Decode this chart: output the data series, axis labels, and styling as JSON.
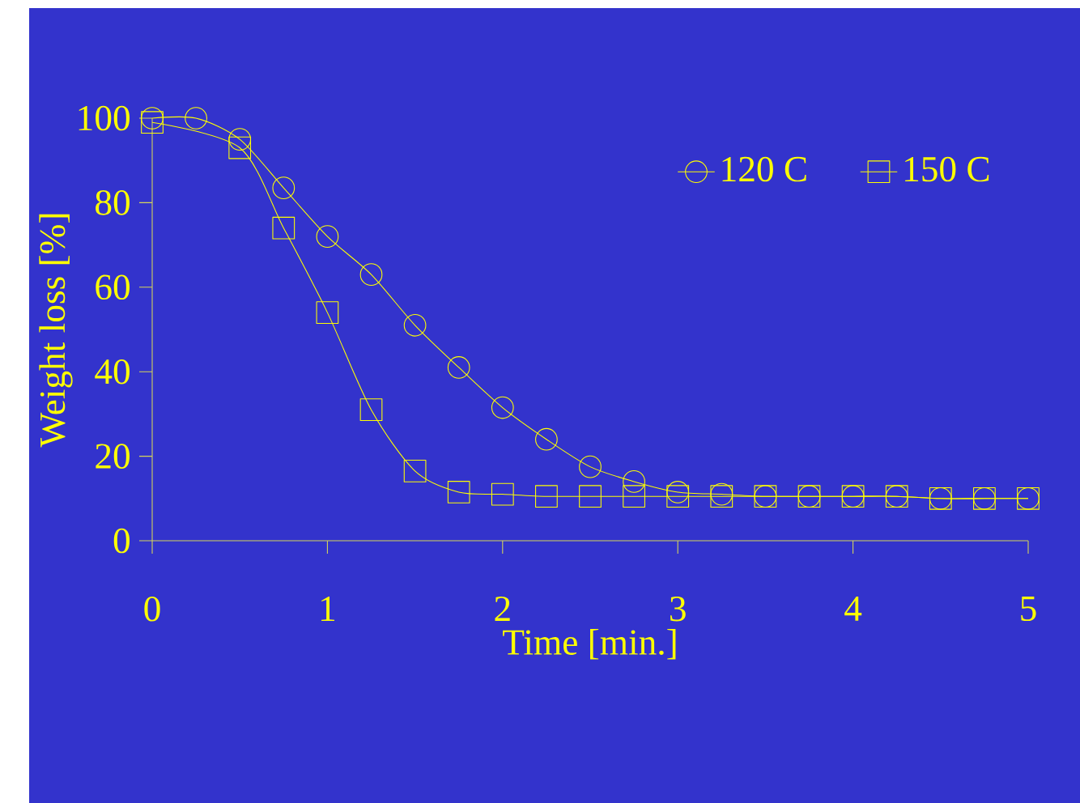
{
  "chart_data": {
    "type": "line",
    "xlabel": "Time [min.]",
    "ylabel": "Weight loss [%]",
    "xlim": [
      0,
      5
    ],
    "ylim": [
      0,
      100
    ],
    "xticks": [
      0,
      1,
      2,
      3,
      4,
      5
    ],
    "yticks": [
      0,
      20,
      40,
      60,
      80,
      100
    ],
    "grid": false,
    "legend": "top right",
    "line_style": "solid",
    "series": [
      {
        "name": "120 C",
        "color": "#ffff00",
        "marker": "circle",
        "x": [
          0,
          0.25,
          0.5,
          0.75,
          1,
          1.25,
          1.5,
          1.75,
          2,
          2.25,
          2.5,
          2.75,
          3,
          3.25,
          3.5,
          3.75,
          4,
          4.25,
          4.5,
          4.75,
          5
        ],
        "values": [
          100,
          100,
          95,
          83.5,
          72,
          63,
          51,
          41,
          31.5,
          24,
          17.5,
          14,
          11.5,
          11,
          10.5,
          10.5,
          10.5,
          10.5,
          10,
          10,
          10
        ]
      },
      {
        "name": "150 C",
        "color": "#ffff00",
        "marker": "square",
        "x": [
          0,
          0.5,
          0.75,
          1,
          1.25,
          1.5,
          1.75,
          2,
          2.25,
          2.5,
          2.75,
          3,
          3.25,
          3.5,
          3.75,
          4,
          4.25,
          4.5,
          4.75,
          5
        ],
        "values": [
          99,
          93,
          74,
          54,
          31,
          16.5,
          11.5,
          11,
          10.5,
          10.5,
          10.5,
          10.5,
          10.5,
          10.5,
          10.5,
          10.5,
          10.5,
          10,
          10,
          10
        ]
      }
    ]
  }
}
